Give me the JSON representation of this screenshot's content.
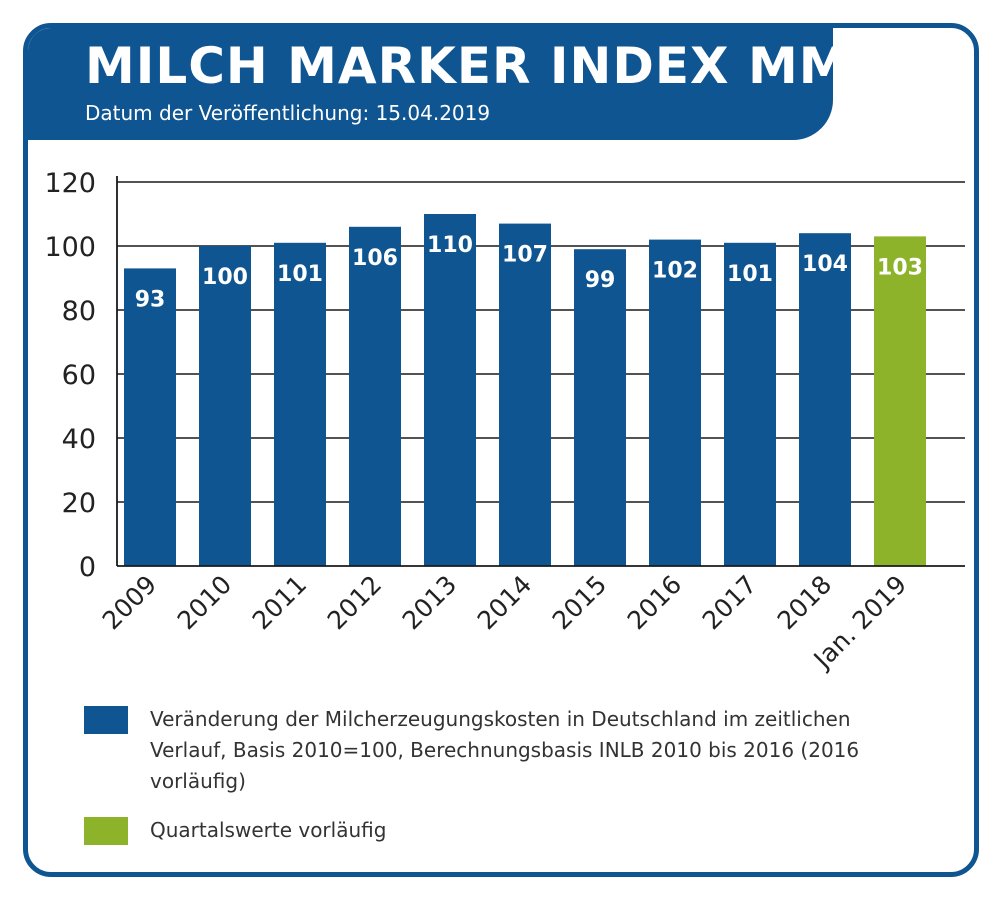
{
  "header": {
    "title": "MILCH MARKER INDEX MMI",
    "subtitle": "Datum der Veröffentlichung: 15.04.2019"
  },
  "legend": {
    "items": [
      {
        "label": "Veränderung der Milcherzeugungskosten in Deutschland im zeitlichen Verlauf, Basis 2010=100, Berechnungsbasis INLB 2010 bis 2016 (2016 vorläufig)",
        "color": "#0f5591"
      },
      {
        "label": "Quartalswerte vorläufig",
        "color": "#8db32b"
      }
    ]
  },
  "chart_data": {
    "type": "bar",
    "title": "MILCH MARKER INDEX MMI",
    "subtitle": "Datum der Veröffentlichung: 15.04.2019",
    "categories": [
      "2009",
      "2010",
      "2011",
      "2012",
      "2013",
      "2014",
      "2015",
      "2016",
      "2017",
      "2018",
      "Jan. 2019"
    ],
    "values": [
      93,
      100,
      101,
      106,
      110,
      107,
      99,
      102,
      101,
      104,
      103
    ],
    "bar_colors": [
      "#0f5591",
      "#0f5591",
      "#0f5591",
      "#0f5591",
      "#0f5591",
      "#0f5591",
      "#0f5591",
      "#0f5591",
      "#0f5591",
      "#0f5591",
      "#8db32b"
    ],
    "xlabel": "",
    "ylabel": "",
    "ylim": [
      0,
      120
    ],
    "yticks": [
      0,
      20,
      40,
      60,
      80,
      100,
      120
    ],
    "grid": true,
    "data_labels": true,
    "legend_position": "bottom"
  }
}
